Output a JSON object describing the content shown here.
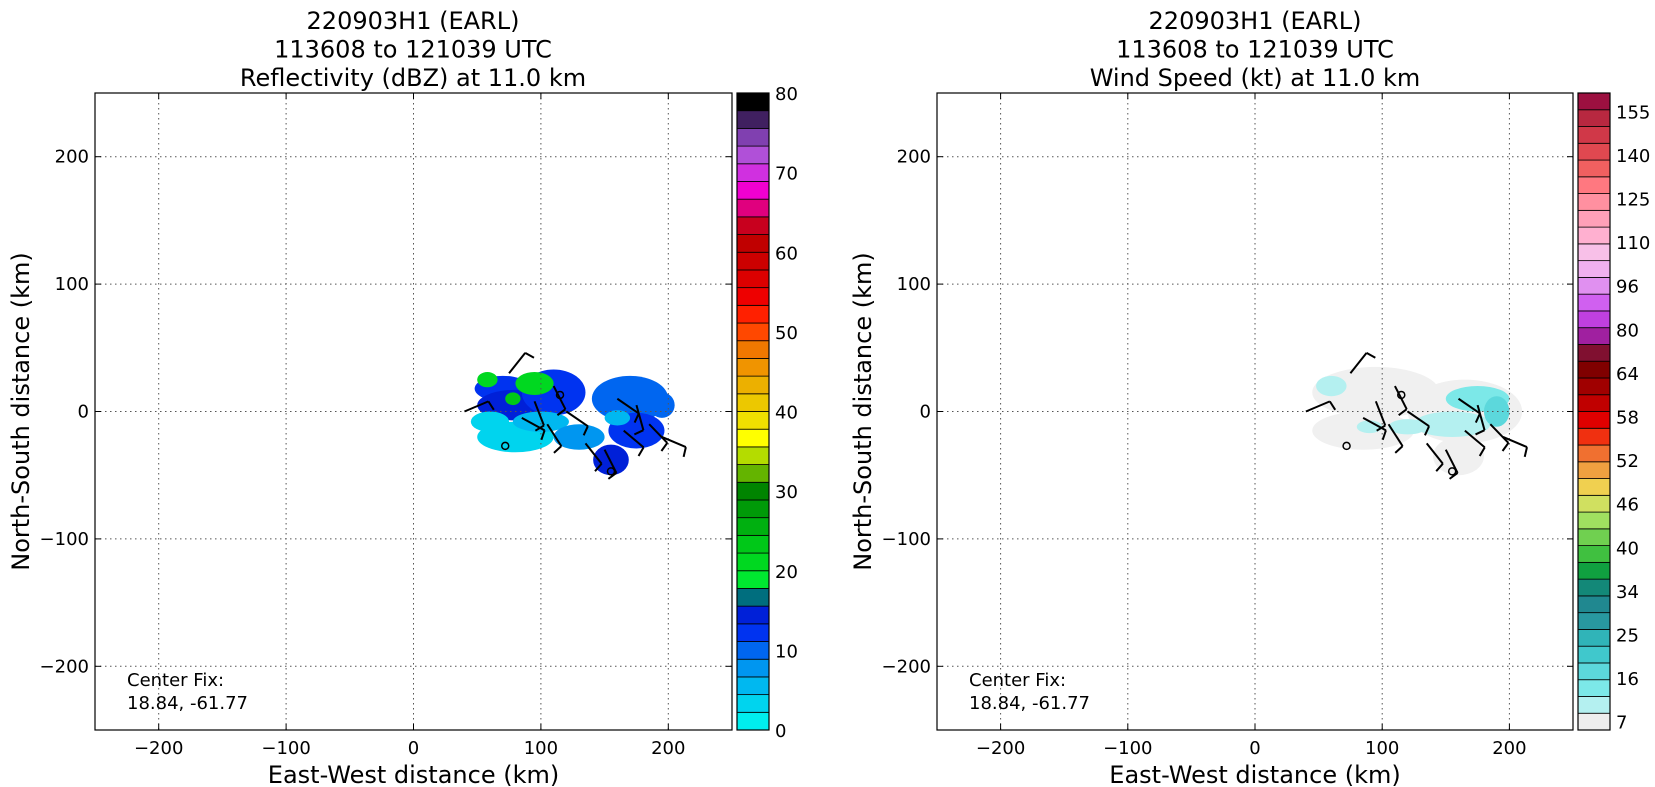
{
  "chart_data": [
    {
      "type": "heatmap",
      "title_lines": [
        "220903H1 (EARL)",
        "113608 to 121039 UTC",
        "Reflectivity (dBZ) at 11.0 km"
      ],
      "xlabel": "East-West distance (km)",
      "ylabel": "North-South distance (km)",
      "xlim": [
        -250,
        250
      ],
      "ylim": [
        -250,
        250
      ],
      "xticks": [
        -200,
        -100,
        0,
        100,
        200
      ],
      "yticks": [
        -200,
        -100,
        0,
        100,
        200
      ],
      "grid": true,
      "annotation": [
        "Center Fix:",
        "18.84, -61.77"
      ],
      "colorbar": {
        "min": 0,
        "max": 80,
        "tick_values": [
          0,
          10,
          20,
          30,
          40,
          50,
          60,
          70,
          80
        ],
        "colors": [
          "#00eeee",
          "#00d4ee",
          "#00b8f0",
          "#0096f0",
          "#0066f0",
          "#0033f0",
          "#0020d8",
          "#006e7e",
          "#00e830",
          "#00d820",
          "#00c818",
          "#00b010",
          "#009a08",
          "#008400",
          "#64b400",
          "#b4dc00",
          "#ffff00",
          "#f0e000",
          "#ecc800",
          "#ecb000",
          "#f09400",
          "#f07800",
          "#ff4800",
          "#ff2000",
          "#ee0000",
          "#dc0000",
          "#cc0000",
          "#c00000",
          "#c8001e",
          "#e0007e",
          "#f000d0",
          "#d030e0",
          "#b050d8",
          "#8040b0",
          "#402060",
          "#000000"
        ]
      },
      "echo_blobs": [
        {
          "cx": 70,
          "cy": 18,
          "rx": 22,
          "ry": 10,
          "color": "#0033f0"
        },
        {
          "cx": 80,
          "cy": 5,
          "rx": 30,
          "ry": 12,
          "color": "#0020d8"
        },
        {
          "cx": 110,
          "cy": 15,
          "rx": 25,
          "ry": 18,
          "color": "#0033f0"
        },
        {
          "cx": 95,
          "cy": 22,
          "rx": 15,
          "ry": 9,
          "color": "#00d820"
        },
        {
          "cx": 58,
          "cy": 25,
          "rx": 8,
          "ry": 6,
          "color": "#00d820"
        },
        {
          "cx": 78,
          "cy": 10,
          "rx": 6,
          "ry": 5,
          "color": "#00c818"
        },
        {
          "cx": 80,
          "cy": -20,
          "rx": 30,
          "ry": 12,
          "color": "#00d4ee"
        },
        {
          "cx": 100,
          "cy": -8,
          "rx": 22,
          "ry": 8,
          "color": "#00b8f0"
        },
        {
          "cx": 60,
          "cy": -8,
          "rx": 15,
          "ry": 8,
          "color": "#00d4ee"
        },
        {
          "cx": 130,
          "cy": -20,
          "rx": 20,
          "ry": 10,
          "color": "#0096f0"
        },
        {
          "cx": 170,
          "cy": 10,
          "rx": 30,
          "ry": 18,
          "color": "#0066f0"
        },
        {
          "cx": 175,
          "cy": -15,
          "rx": 22,
          "ry": 14,
          "color": "#0033f0"
        },
        {
          "cx": 155,
          "cy": -38,
          "rx": 14,
          "ry": 12,
          "color": "#0020d8"
        },
        {
          "cx": 195,
          "cy": 5,
          "rx": 10,
          "ry": 10,
          "color": "#0066f0"
        },
        {
          "cx": 160,
          "cy": -5,
          "rx": 10,
          "ry": 6,
          "color": "#00b8f0"
        }
      ]
    },
    {
      "type": "heatmap",
      "title_lines": [
        "220903H1 (EARL)",
        "113608 to 121039 UTC",
        "Wind Speed (kt) at 11.0 km"
      ],
      "xlabel": "East-West distance (km)",
      "ylabel": "North-South distance (km)",
      "xlim": [
        -250,
        250
      ],
      "ylim": [
        -250,
        250
      ],
      "xticks": [
        -200,
        -100,
        0,
        100,
        200
      ],
      "yticks": [
        -200,
        -100,
        0,
        100,
        200
      ],
      "grid": true,
      "annotation": [
        "Center Fix:",
        "18.84, -61.77"
      ],
      "colorbar": {
        "tick_labels": [
          "7",
          "16",
          "25",
          "34",
          "40",
          "46",
          "52",
          "58",
          "64",
          "80",
          "96",
          "110",
          "125",
          "140",
          "155"
        ],
        "colors": [
          "#eeeeee",
          "#b4f0f0",
          "#7ce8e8",
          "#5cd8dc",
          "#40c8cc",
          "#30b4b8",
          "#2898a0",
          "#208890",
          "#138878",
          "#10a040",
          "#40c040",
          "#70d050",
          "#a0e060",
          "#d0e060",
          "#f0d050",
          "#f0a040",
          "#f07030",
          "#f03010",
          "#e00000",
          "#c00000",
          "#a00000",
          "#800000",
          "#801030",
          "#a020a0",
          "#c040e0",
          "#d060f0",
          "#e090f0",
          "#f0b0f0",
          "#f8c0e8",
          "#ffb0d0",
          "#ffa0b8",
          "#ff90a0",
          "#ff7880",
          "#f06060",
          "#e04850",
          "#d03848",
          "#b82840",
          "#9c1040"
        ]
      },
      "echo_blobs": [
        {
          "cx": 95,
          "cy": 15,
          "rx": 50,
          "ry": 20,
          "color": "#f0f0f0"
        },
        {
          "cx": 85,
          "cy": -15,
          "rx": 40,
          "ry": 15,
          "color": "#f0f0f0"
        },
        {
          "cx": 165,
          "cy": 0,
          "rx": 45,
          "ry": 25,
          "color": "#f0f0f0"
        },
        {
          "cx": 160,
          "cy": -35,
          "rx": 20,
          "ry": 15,
          "color": "#f0f0f0"
        },
        {
          "cx": 60,
          "cy": 20,
          "rx": 12,
          "ry": 8,
          "color": "#b4f0f0"
        },
        {
          "cx": 90,
          "cy": -12,
          "rx": 10,
          "ry": 5,
          "color": "#b4f0f0"
        },
        {
          "cx": 120,
          "cy": -12,
          "rx": 15,
          "ry": 6,
          "color": "#b4f0f0"
        },
        {
          "cx": 155,
          "cy": -10,
          "rx": 30,
          "ry": 10,
          "color": "#b4f0f0"
        },
        {
          "cx": 175,
          "cy": 10,
          "rx": 25,
          "ry": 10,
          "color": "#7ce8e8"
        },
        {
          "cx": 190,
          "cy": 0,
          "rx": 10,
          "ry": 12,
          "color": "#5cd8dc"
        }
      ]
    }
  ]
}
